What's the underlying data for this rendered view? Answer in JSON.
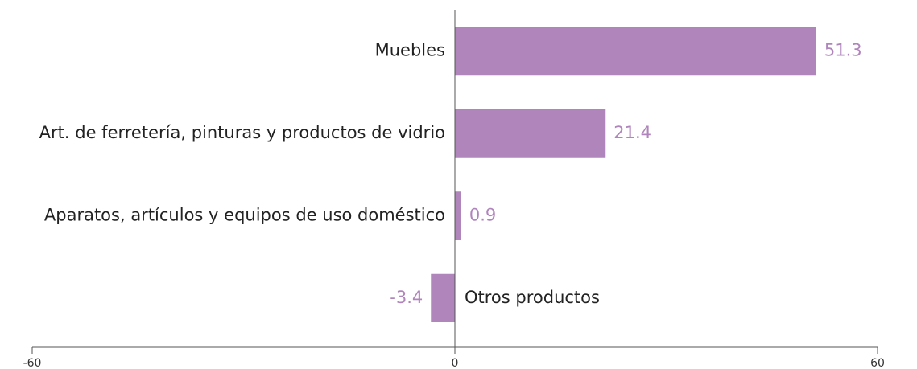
{
  "chart_data": {
    "type": "barh",
    "categories": [
      "Muebles",
      "Art. de ferretería, pinturas y productos de vidrio",
      "Aparatos, artículos y equipos de uso doméstico",
      "Otros productos"
    ],
    "values": [
      51.3,
      21.4,
      0.9,
      -3.4
    ],
    "color": "#b085bc",
    "xlim": [
      -60,
      60
    ],
    "xticks": [
      -60,
      0,
      60
    ]
  }
}
